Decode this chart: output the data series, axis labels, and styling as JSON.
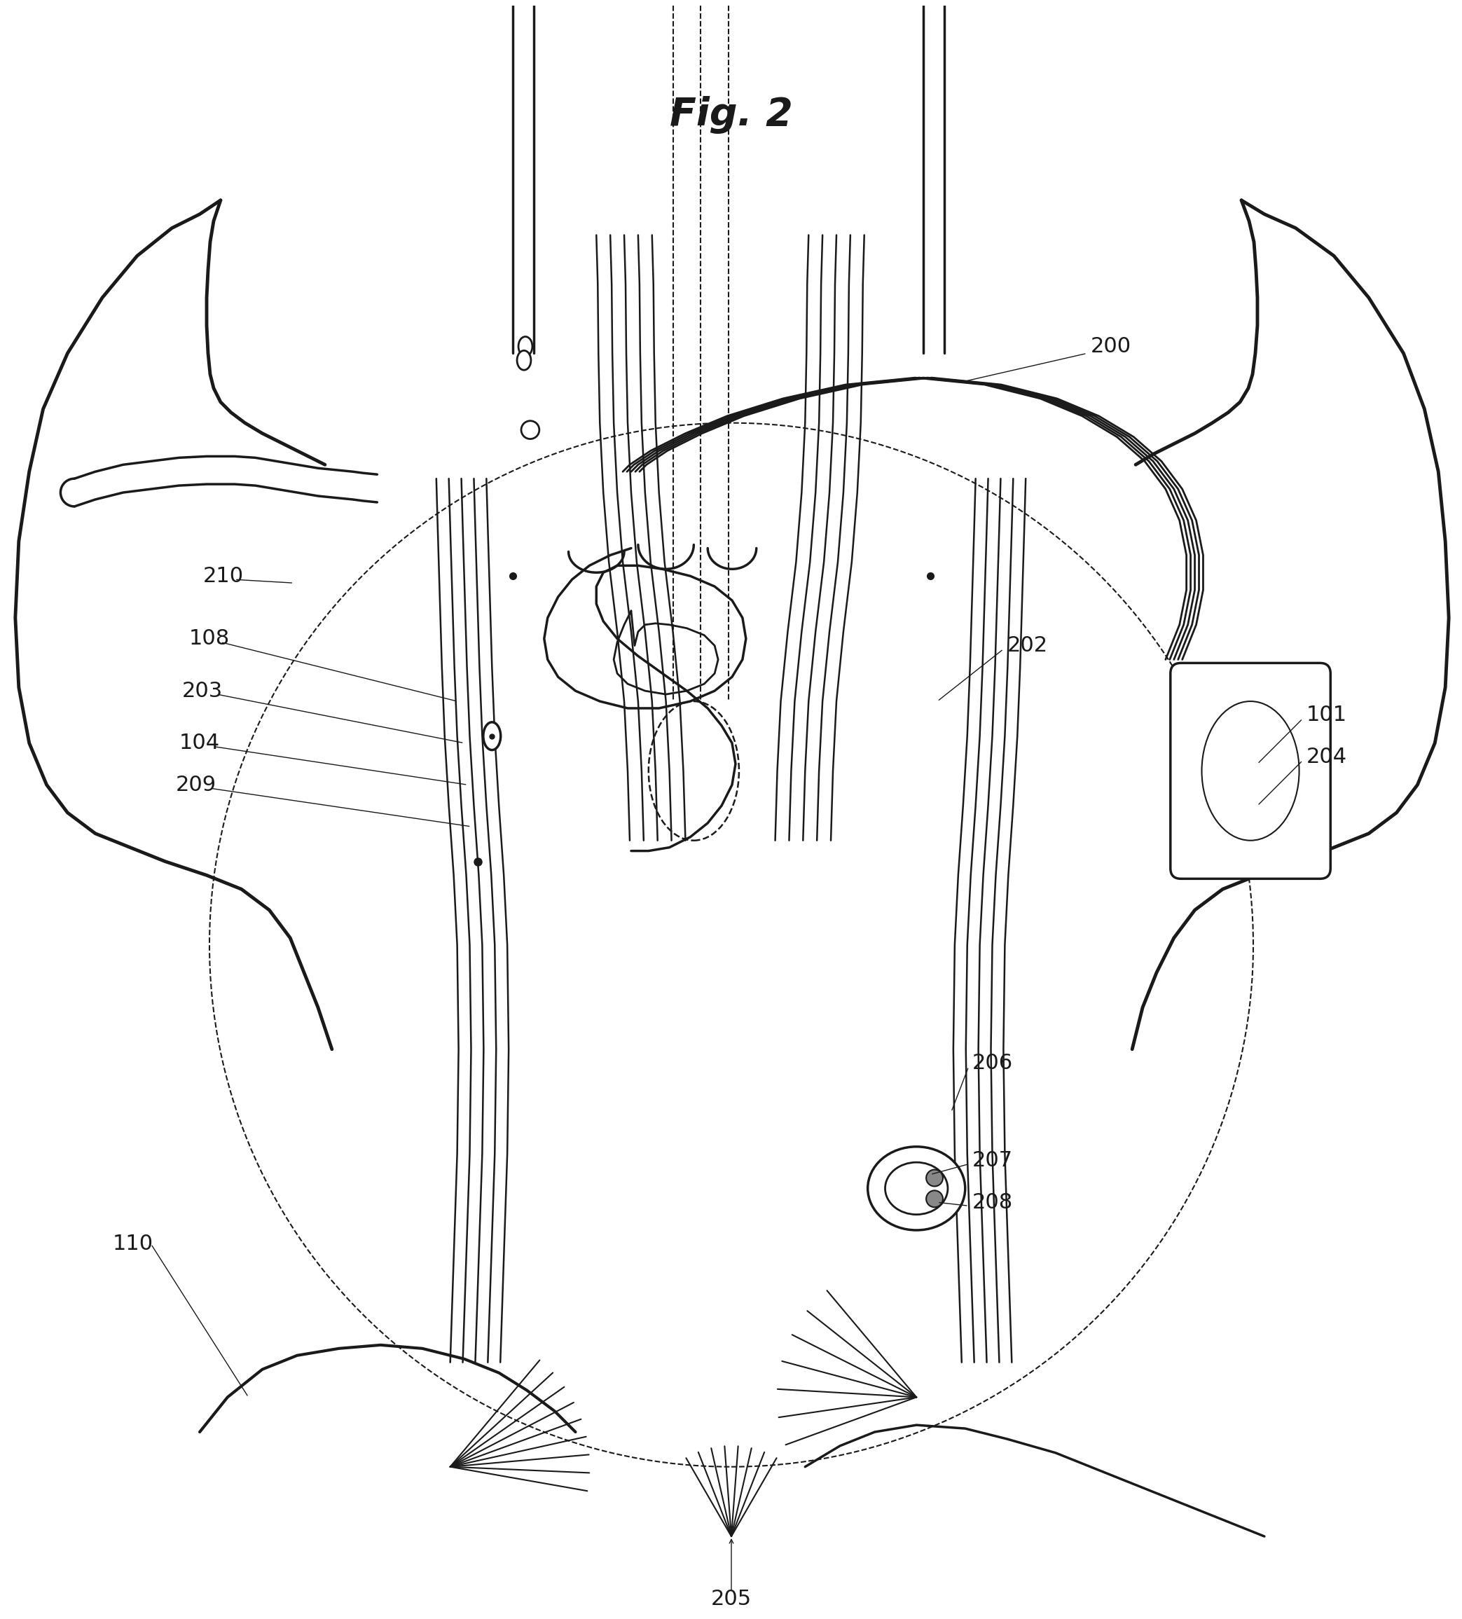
{
  "title": "Fig. 2",
  "title_fontsize": 40,
  "title_style": "italic",
  "title_weight": "bold",
  "background_color": "#ffffff",
  "line_color": "#1a1a1a",
  "label_color": "#1a1a1a",
  "label_fontsize": 22
}
